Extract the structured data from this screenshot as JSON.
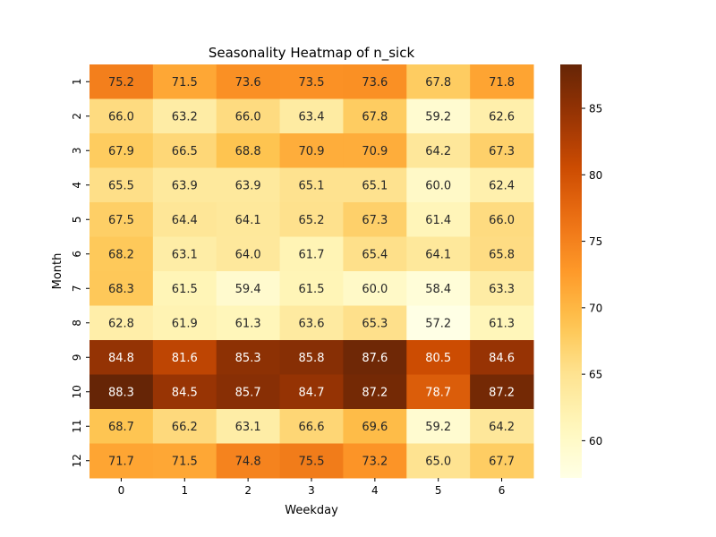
{
  "chart_data": {
    "type": "heatmap",
    "title": "Seasonality Heatmap of n_sick",
    "xlabel": "Weekday",
    "ylabel": "Month",
    "x_categories": [
      "0",
      "1",
      "2",
      "3",
      "4",
      "5",
      "6"
    ],
    "y_categories": [
      "1",
      "2",
      "3",
      "4",
      "5",
      "6",
      "7",
      "8",
      "9",
      "10",
      "11",
      "12"
    ],
    "values": [
      [
        75.2,
        71.5,
        73.6,
        73.5,
        73.6,
        67.8,
        71.8
      ],
      [
        66.0,
        63.2,
        66.0,
        63.4,
        67.8,
        59.2,
        62.6
      ],
      [
        67.9,
        66.5,
        68.8,
        70.9,
        70.9,
        64.2,
        67.3
      ],
      [
        65.5,
        63.9,
        63.9,
        65.1,
        65.1,
        60.0,
        62.4
      ],
      [
        67.5,
        64.4,
        64.1,
        65.2,
        67.3,
        61.4,
        66.0
      ],
      [
        68.2,
        63.1,
        64.0,
        61.7,
        65.4,
        64.1,
        65.8
      ],
      [
        68.3,
        61.5,
        59.4,
        61.5,
        60.0,
        58.4,
        63.3
      ],
      [
        62.8,
        61.9,
        61.3,
        63.6,
        65.3,
        57.2,
        61.3
      ],
      [
        84.8,
        81.6,
        85.3,
        85.8,
        87.6,
        80.5,
        84.6
      ],
      [
        88.3,
        84.5,
        85.7,
        84.7,
        87.2,
        78.7,
        87.2
      ],
      [
        68.7,
        66.2,
        63.1,
        66.6,
        69.6,
        59.2,
        64.2
      ],
      [
        71.7,
        71.5,
        74.8,
        75.5,
        73.2,
        65.0,
        67.7
      ]
    ],
    "value_format": "0.1f",
    "colormap": "YlOrBr",
    "colorbar": {
      "min": 57.2,
      "max": 88.3,
      "ticks": [
        60,
        65,
        70,
        75,
        80,
        85
      ]
    },
    "grid": false,
    "legend": "colorbar-right"
  }
}
